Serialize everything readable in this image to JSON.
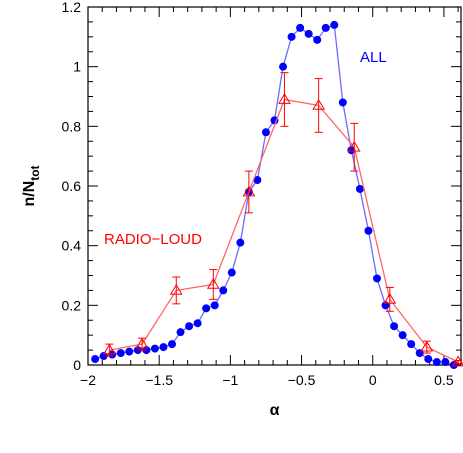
{
  "chart_data": {
    "type": "line",
    "xlabel": "α",
    "ylabel": "n/N",
    "ylabel_sub": "tot",
    "xlim": [
      -2.0,
      0.62
    ],
    "ylim": [
      0,
      1.2
    ],
    "xticks": [
      -2,
      -1.5,
      -1,
      -0.5,
      0,
      0.5
    ],
    "xtick_labels": [
      "−2",
      "−1.5",
      "−1",
      "−0.5",
      "0",
      "0.5"
    ],
    "yticks": [
      0,
      0.2,
      0.4,
      0.6,
      0.8,
      1,
      1.2
    ],
    "ytick_labels": [
      "0",
      "0.2",
      "0.4",
      "0.6",
      "0.8",
      "1",
      "1.2"
    ],
    "grid": false,
    "series": [
      {
        "name": "ALL",
        "color": "#0000ff",
        "line_color": "#6a6aff",
        "marker": "circle",
        "x": [
          -1.95,
          -1.89,
          -1.83,
          -1.77,
          -1.71,
          -1.65,
          -1.59,
          -1.53,
          -1.47,
          -1.41,
          -1.35,
          -1.29,
          -1.23,
          -1.17,
          -1.11,
          -1.05,
          -0.99,
          -0.93,
          -0.87,
          -0.81,
          -0.75,
          -0.69,
          -0.63,
          -0.57,
          -0.51,
          -0.45,
          -0.39,
          -0.33,
          -0.27,
          -0.21,
          -0.15,
          -0.09,
          -0.03,
          0.03,
          0.09,
          0.15,
          0.21,
          0.27,
          0.33,
          0.39,
          0.45,
          0.51,
          0.57
        ],
        "y": [
          0.02,
          0.03,
          0.035,
          0.04,
          0.045,
          0.05,
          0.05,
          0.055,
          0.06,
          0.07,
          0.11,
          0.13,
          0.14,
          0.19,
          0.2,
          0.25,
          0.31,
          0.41,
          0.58,
          0.62,
          0.78,
          0.82,
          1.0,
          1.1,
          1.13,
          1.11,
          1.09,
          1.13,
          1.14,
          0.88,
          0.72,
          0.59,
          0.45,
          0.29,
          0.2,
          0.13,
          0.1,
          0.07,
          0.04,
          0.02,
          0.01,
          0.01,
          0.0
        ]
      },
      {
        "name": "RADIO−LOUD",
        "color": "#ff0000",
        "line_color": "#ff6666",
        "marker": "triangle",
        "x": [
          -1.85,
          -1.62,
          -1.38,
          -1.12,
          -0.87,
          -0.62,
          -0.38,
          -0.13,
          0.12,
          0.38,
          0.6
        ],
        "y": [
          0.05,
          0.07,
          0.25,
          0.27,
          0.58,
          0.89,
          0.87,
          0.73,
          0.22,
          0.06,
          0.01
        ],
        "yerr": [
          0.02,
          0.02,
          0.045,
          0.05,
          0.07,
          0.09,
          0.09,
          0.08,
          0.04,
          0.02,
          0.005
        ]
      }
    ]
  }
}
